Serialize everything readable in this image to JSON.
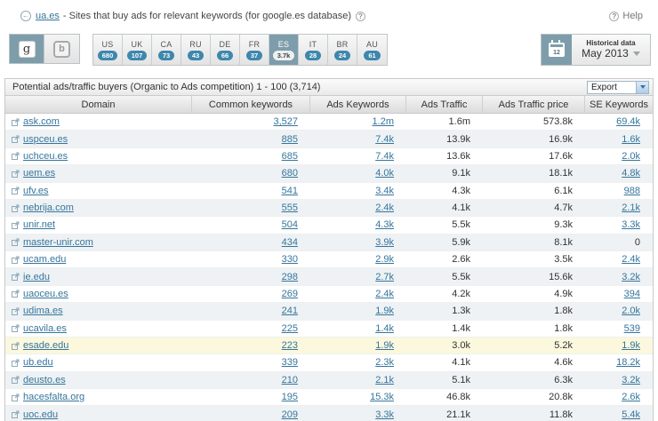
{
  "header": {
    "domain_link": "ua.es",
    "title_rest": "- Sites that buy ads for relevant keywords (for google.es database)",
    "help_label": "Help"
  },
  "toolbar": {
    "engines": [
      {
        "name": "google",
        "label": "g",
        "selected": true
      },
      {
        "name": "bing",
        "label": "b",
        "selected": false
      }
    ],
    "countries": [
      {
        "code": "US",
        "count": "680",
        "selected": false
      },
      {
        "code": "UK",
        "count": "107",
        "selected": false
      },
      {
        "code": "CA",
        "count": "73",
        "selected": false
      },
      {
        "code": "RU",
        "count": "43",
        "selected": false
      },
      {
        "code": "DE",
        "count": "66",
        "selected": false
      },
      {
        "code": "FR",
        "count": "37",
        "selected": false
      },
      {
        "code": "ES",
        "count": "3.7k",
        "selected": true
      },
      {
        "code": "IT",
        "count": "28",
        "selected": false
      },
      {
        "code": "BR",
        "count": "24",
        "selected": false
      },
      {
        "code": "AU",
        "count": "61",
        "selected": false
      }
    ],
    "historical": {
      "label": "Historical data",
      "value": "May 2013"
    }
  },
  "table": {
    "title": "Potential ads/traffic buyers (Organic to Ads competition) 1 - 100 (3,714)",
    "export_label": "Export",
    "columns": [
      "Domain",
      "Common keywords",
      "Ads Keywords",
      "Ads Traffic",
      "Ads Traffic price",
      "SE Keywords"
    ],
    "rows": [
      {
        "domain": "ask.com",
        "common_keywords": "3,527",
        "ads_keywords": "1.2m",
        "ads_traffic": "1.6m",
        "ads_traffic_price": "573.8k",
        "se_keywords": "69.4k",
        "highlight": false
      },
      {
        "domain": "uspceu.es",
        "common_keywords": "885",
        "ads_keywords": "7.4k",
        "ads_traffic": "13.9k",
        "ads_traffic_price": "16.9k",
        "se_keywords": "1.6k",
        "highlight": false
      },
      {
        "domain": "uchceu.es",
        "common_keywords": "685",
        "ads_keywords": "7.4k",
        "ads_traffic": "13.6k",
        "ads_traffic_price": "17.6k",
        "se_keywords": "2.0k",
        "highlight": false
      },
      {
        "domain": "uem.es",
        "common_keywords": "680",
        "ads_keywords": "4.0k",
        "ads_traffic": "9.1k",
        "ads_traffic_price": "18.1k",
        "se_keywords": "4.8k",
        "highlight": false
      },
      {
        "domain": "ufv.es",
        "common_keywords": "541",
        "ads_keywords": "3.4k",
        "ads_traffic": "4.3k",
        "ads_traffic_price": "6.1k",
        "se_keywords": "988",
        "highlight": false
      },
      {
        "domain": "nebrija.com",
        "common_keywords": "555",
        "ads_keywords": "2.4k",
        "ads_traffic": "4.1k",
        "ads_traffic_price": "4.7k",
        "se_keywords": "2.1k",
        "highlight": false
      },
      {
        "domain": "unir.net",
        "common_keywords": "504",
        "ads_keywords": "4.3k",
        "ads_traffic": "5.5k",
        "ads_traffic_price": "9.3k",
        "se_keywords": "3.3k",
        "highlight": false
      },
      {
        "domain": "master-unir.com",
        "common_keywords": "434",
        "ads_keywords": "3.9k",
        "ads_traffic": "5.9k",
        "ads_traffic_price": "8.1k",
        "se_keywords": "0",
        "highlight": false
      },
      {
        "domain": "ucam.edu",
        "common_keywords": "330",
        "ads_keywords": "2.9k",
        "ads_traffic": "2.6k",
        "ads_traffic_price": "3.5k",
        "se_keywords": "2.4k",
        "highlight": false
      },
      {
        "domain": "ie.edu",
        "common_keywords": "298",
        "ads_keywords": "2.7k",
        "ads_traffic": "5.5k",
        "ads_traffic_price": "15.6k",
        "se_keywords": "3.2k",
        "highlight": false
      },
      {
        "domain": "uaoceu.es",
        "common_keywords": "269",
        "ads_keywords": "2.4k",
        "ads_traffic": "4.2k",
        "ads_traffic_price": "4.9k",
        "se_keywords": "394",
        "highlight": false
      },
      {
        "domain": "udima.es",
        "common_keywords": "241",
        "ads_keywords": "1.9k",
        "ads_traffic": "1.3k",
        "ads_traffic_price": "1.8k",
        "se_keywords": "2.0k",
        "highlight": false
      },
      {
        "domain": "ucavila.es",
        "common_keywords": "225",
        "ads_keywords": "1.4k",
        "ads_traffic": "1.4k",
        "ads_traffic_price": "1.8k",
        "se_keywords": "539",
        "highlight": false
      },
      {
        "domain": "esade.edu",
        "common_keywords": "223",
        "ads_keywords": "1.9k",
        "ads_traffic": "3.0k",
        "ads_traffic_price": "5.2k",
        "se_keywords": "1.9k",
        "highlight": true
      },
      {
        "domain": "ub.edu",
        "common_keywords": "339",
        "ads_keywords": "2.3k",
        "ads_traffic": "4.1k",
        "ads_traffic_price": "4.6k",
        "se_keywords": "18.2k",
        "highlight": false
      },
      {
        "domain": "deusto.es",
        "common_keywords": "210",
        "ads_keywords": "2.1k",
        "ads_traffic": "5.1k",
        "ads_traffic_price": "6.3k",
        "se_keywords": "3.2k",
        "highlight": false
      },
      {
        "domain": "hacesfalta.org",
        "common_keywords": "195",
        "ads_keywords": "15.3k",
        "ads_traffic": "46.8k",
        "ads_traffic_price": "20.8k",
        "se_keywords": "2.6k",
        "highlight": false
      },
      {
        "domain": "uoc.edu",
        "common_keywords": "209",
        "ads_keywords": "3.3k",
        "ads_traffic": "21.1k",
        "ads_traffic_price": "11.8k",
        "se_keywords": "5.4k",
        "highlight": false
      }
    ]
  }
}
